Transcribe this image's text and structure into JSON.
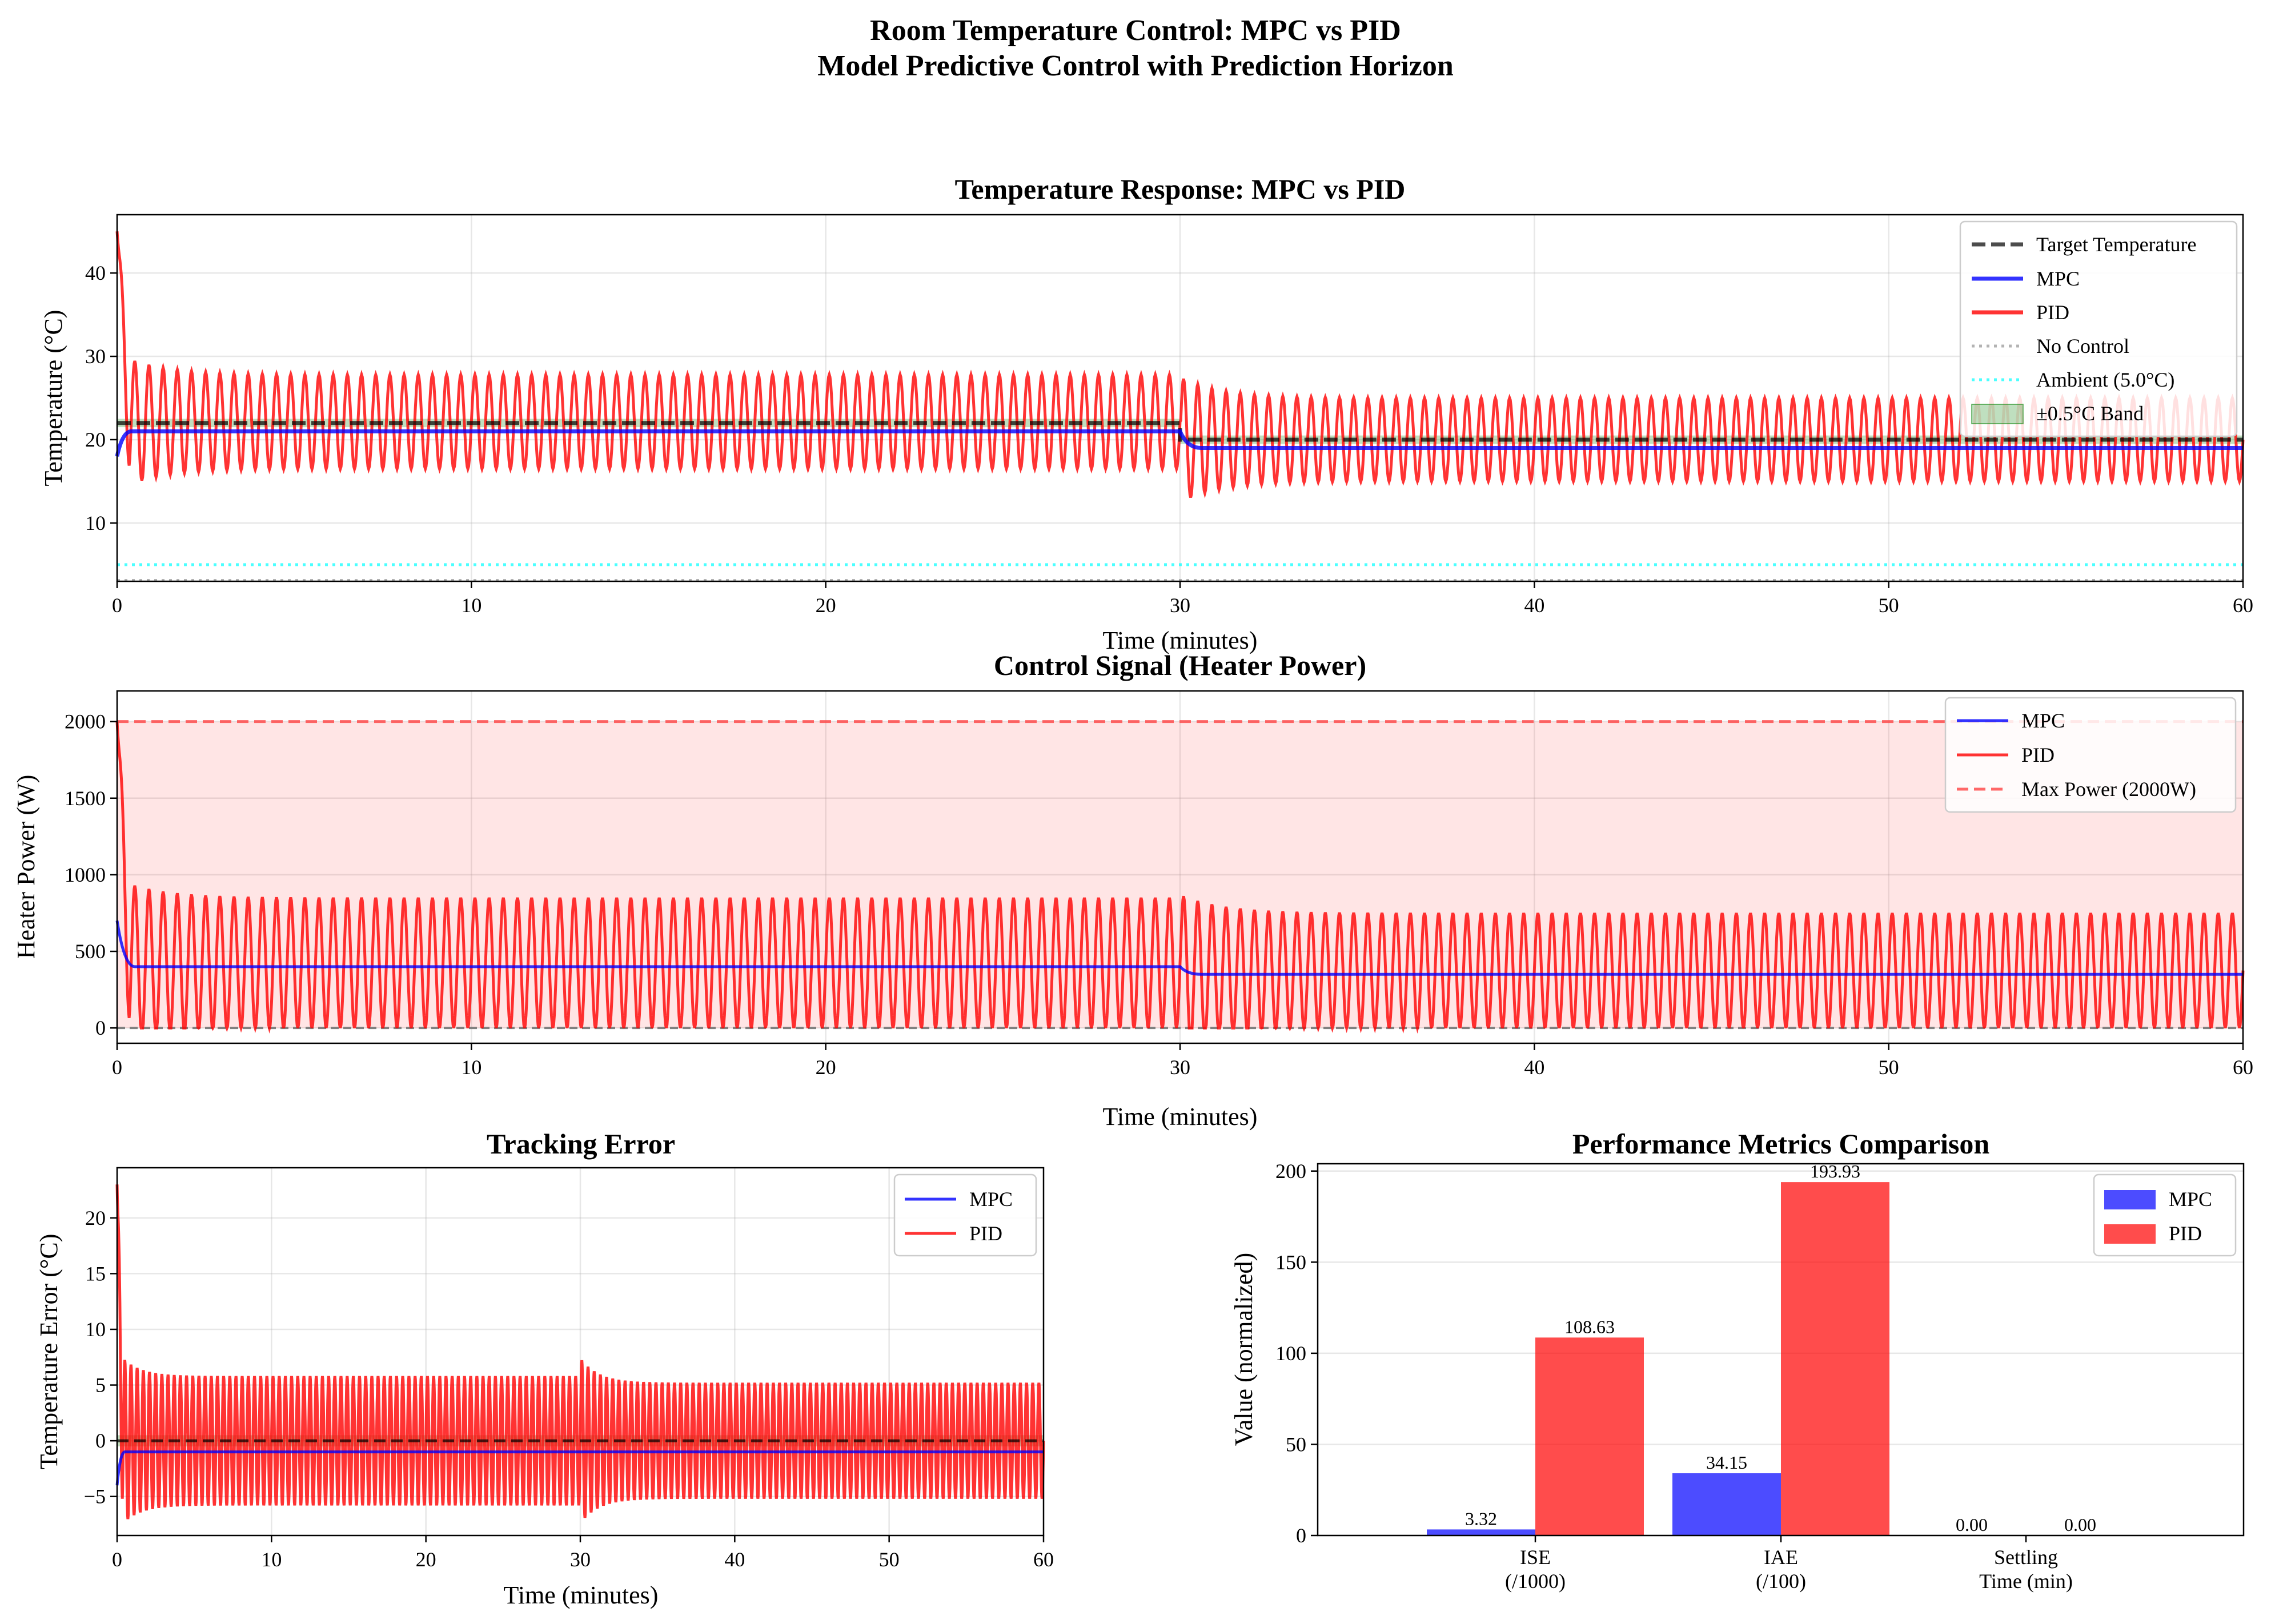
{
  "figure": {
    "title_line1": "Room Temperature Control: MPC vs PID",
    "title_line2": "Model Predictive Control with Prediction Horizon"
  },
  "colors": {
    "mpc": "#0000ff",
    "pid": "#ff0000",
    "target": "#000000",
    "no_control": "#808080",
    "ambient": "#00ffff",
    "band": "#008000",
    "max_power": "#ff4444"
  },
  "chart_data": [
    {
      "id": "temperature",
      "type": "line",
      "title": "Temperature Response: MPC vs PID",
      "xlabel": "Time (minutes)",
      "ylabel": "Temperature (°C)",
      "xlim": [
        0,
        60
      ],
      "ylim": [
        3,
        47
      ],
      "xticks": [
        "0",
        "10",
        "20",
        "30",
        "40",
        "50",
        "60"
      ],
      "yticks": [
        "10",
        "20",
        "30",
        "40"
      ],
      "grid": true,
      "legend_position": "top-right",
      "setpoints": [
        {
          "from": 0,
          "to": 30,
          "value": 22
        },
        {
          "from": 30,
          "to": 60,
          "value": 20
        }
      ],
      "series": [
        {
          "name": "Target Temperature",
          "style": "dashed",
          "description_values": "22 for t<30, 20 for t>=30"
        },
        {
          "name": "MPC",
          "steady_values": [
            21,
            19
          ],
          "start": 18
        },
        {
          "name": "PID",
          "oscillation_min": [
            16.5,
            15
          ],
          "oscillation_max": [
            27.8,
            25
          ],
          "initial_peak": 45,
          "period_minutes": 0.4
        },
        {
          "name": "No Control",
          "style": "dotted"
        },
        {
          "name": "Ambient (5.0°C)",
          "value": 5.0,
          "style": "dotted"
        },
        {
          "name": "±0.5°C Band",
          "style": "band"
        }
      ]
    },
    {
      "id": "control",
      "type": "line",
      "title": "Control Signal (Heater Power)",
      "xlabel": "Time (minutes)",
      "ylabel": "Heater Power (W)",
      "xlim": [
        0,
        60
      ],
      "ylim": [
        -100,
        2200
      ],
      "xticks": [
        "0",
        "10",
        "20",
        "30",
        "40",
        "50",
        "60"
      ],
      "yticks": [
        "0",
        "500",
        "1000",
        "1500",
        "2000"
      ],
      "grid": true,
      "legend_position": "top-right",
      "series": [
        {
          "name": "MPC",
          "steady_values": [
            400,
            350
          ]
        },
        {
          "name": "PID",
          "oscillation_min": [
            0,
            0
          ],
          "oscillation_max": [
            850,
            750
          ],
          "initial_peak": 2000
        },
        {
          "name": "Max Power (2000W)",
          "value": 2000,
          "style": "dashed"
        }
      ]
    },
    {
      "id": "error",
      "type": "line",
      "title": "Tracking Error",
      "xlabel": "Time (minutes)",
      "ylabel": "Temperature Error (°C)",
      "xlim": [
        0,
        60
      ],
      "ylim": [
        -8.5,
        24.5
      ],
      "xticks": [
        "0",
        "10",
        "20",
        "30",
        "40",
        "50",
        "60"
      ],
      "yticks": [
        "−5",
        "0",
        "5",
        "10",
        "15",
        "20"
      ],
      "grid": true,
      "legend_position": "top-right",
      "series": [
        {
          "name": "MPC",
          "steady_value": -1
        },
        {
          "name": "PID",
          "oscillation_min": [
            -5.8,
            -5.2
          ],
          "oscillation_max": [
            5.8,
            5.2
          ],
          "initial_peak": 23
        }
      ]
    },
    {
      "id": "metrics",
      "type": "bar",
      "title": "Performance Metrics Comparison",
      "xlabel": "",
      "ylabel": "Value (normalized)",
      "ylim": [
        0,
        204
      ],
      "yticks": [
        "0",
        "50",
        "100",
        "150",
        "200"
      ],
      "categories": [
        {
          "line1": "ISE",
          "line2": "(/1000)"
        },
        {
          "line1": "IAE",
          "line2": "(/100)"
        },
        {
          "line1": "Settling",
          "line2": "Time (min)"
        }
      ],
      "grid": true,
      "legend_position": "top-right",
      "series": [
        {
          "name": "MPC",
          "values": [
            3.32,
            34.15,
            0.0
          ],
          "labels": [
            "3.32",
            "34.15",
            "0.00"
          ]
        },
        {
          "name": "PID",
          "values": [
            108.63,
            193.93,
            0.0
          ],
          "labels": [
            "108.63",
            "193.93",
            "0.00"
          ]
        }
      ]
    }
  ]
}
